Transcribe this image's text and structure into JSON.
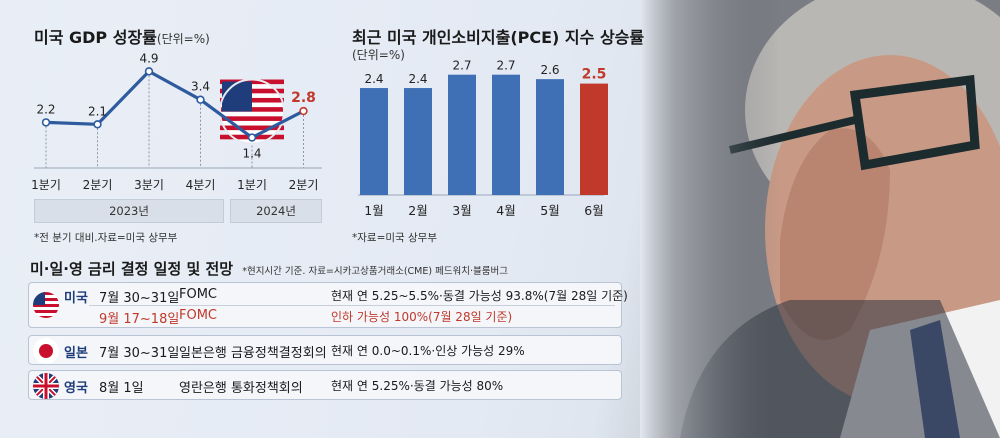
{
  "gdp": {
    "title": "미국 GDP 성장률",
    "unit": "(단위=%)",
    "years": [
      "2023년",
      "2024년"
    ],
    "note": "*전 분기 대비.자료=미국 상무부"
  },
  "pce": {
    "title": "최근 미국 개인소비지출(PCE) 지수 상승률",
    "unit": "(단위=%)",
    "note": "*자료=미국 상무부"
  },
  "schedule": {
    "title": "미·일·영 금리 결정 일정 및 전망",
    "note": "*현지시간 기준. 자료=시카고상품거래소(CME) 페드워치·블룸버그",
    "rows": [
      {
        "country": "미국",
        "date": "7월 30~31일",
        "event": "FOMC",
        "outlook": "현재 연 5.25~5.5%·동결 가능성 93.8%(7월 28일 기준)",
        "highlight": false
      },
      {
        "country": "",
        "date": "9월 17~18일",
        "event": "FOMC",
        "outlook": "인하 가능성 100%(7월 28일 기준)",
        "highlight": true
      },
      {
        "country": "일본",
        "date": "7월 30~31일",
        "event": "일본은행 금융정책결정회의",
        "outlook": "현재 연 0.0~0.1%·인상 가능성 29%",
        "highlight": false
      },
      {
        "country": "영국",
        "date": "8월 1일",
        "event": "영란은행 통화정책회의",
        "outlook": "현재 연 5.25%·동결 가능성 80%",
        "highlight": false
      }
    ]
  },
  "colors": {
    "accent_red": "#c0392b",
    "bar_blue": "#3f6fb5",
    "line_blue": "#2d5b9e"
  },
  "chart_data": [
    {
      "type": "line",
      "title": "미국 GDP 성장률",
      "unit": "%",
      "categories": [
        "1분기",
        "2분기",
        "3분기",
        "4분기",
        "1분기",
        "2분기"
      ],
      "groups": [
        {
          "label": "2023년",
          "span": 4
        },
        {
          "label": "2024년",
          "span": 2
        }
      ],
      "values": [
        2.2,
        2.1,
        4.9,
        3.4,
        1.4,
        2.8
      ],
      "data_labels": [
        "2.2",
        "2.1",
        "4.9",
        "3.4",
        "1.4",
        "2.8"
      ],
      "highlight_index": 5,
      "ylim": [
        0,
        5.5
      ]
    },
    {
      "type": "bar",
      "title": "최근 미국 개인소비지출(PCE) 지수 상승률",
      "unit": "%",
      "categories": [
        "1월",
        "2월",
        "3월",
        "4월",
        "5월",
        "6월"
      ],
      "values": [
        2.4,
        2.4,
        2.7,
        2.7,
        2.6,
        2.5
      ],
      "data_labels": [
        "2.4",
        "2.4",
        "2.7",
        "2.7",
        "2.6",
        "2.5"
      ],
      "highlight_index": 5,
      "ylim": [
        0,
        2.85
      ]
    }
  ]
}
